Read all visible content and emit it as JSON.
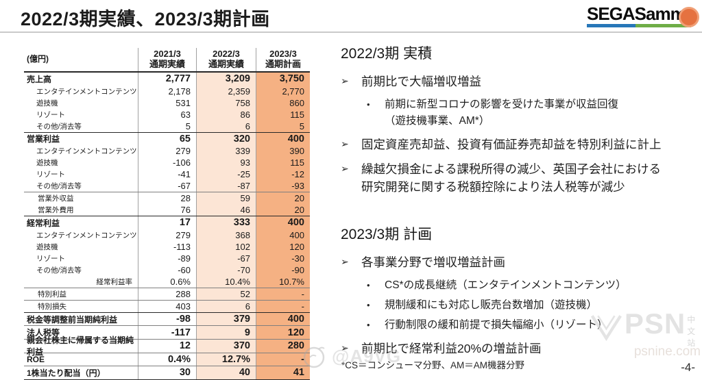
{
  "title": "2022/3期実績、2023/3期計画",
  "logo": {
    "text": "SEGASammy"
  },
  "table": {
    "unit_label": "(億円)",
    "columns": [
      {
        "line1": "2021/3",
        "line2": "通期実績"
      },
      {
        "line1": "2022/3",
        "line2": "通期実績"
      },
      {
        "line1": "2023/3",
        "line2": "通期計画"
      }
    ],
    "rows": [
      {
        "label": "売上高",
        "indent": 0,
        "bold": true,
        "border": "b1",
        "values": [
          "2,777",
          "3,209",
          "3,750"
        ]
      },
      {
        "label": "エンタテインメントコンテンツ",
        "indent": 1,
        "bold": false,
        "border": "",
        "values": [
          "2,178",
          "2,359",
          "2,770"
        ]
      },
      {
        "label": "遊技機",
        "indent": 1,
        "bold": false,
        "border": "",
        "values": [
          "531",
          "758",
          "860"
        ]
      },
      {
        "label": "リゾート",
        "indent": 1,
        "bold": false,
        "border": "",
        "values": [
          "63",
          "86",
          "115"
        ]
      },
      {
        "label": "その他/消去等",
        "indent": 1,
        "bold": false,
        "border": "",
        "values": [
          "5",
          "6",
          "5"
        ]
      },
      {
        "label": "営業利益",
        "indent": 0,
        "bold": true,
        "border": "b1",
        "values": [
          "65",
          "320",
          "400"
        ]
      },
      {
        "label": "エンタテインメントコンテンツ",
        "indent": 1,
        "bold": false,
        "border": "",
        "values": [
          "279",
          "339",
          "390"
        ]
      },
      {
        "label": "遊技機",
        "indent": 1,
        "bold": false,
        "border": "",
        "values": [
          "-106",
          "93",
          "115"
        ]
      },
      {
        "label": "リゾート",
        "indent": 1,
        "bold": false,
        "border": "",
        "values": [
          "-41",
          "-25",
          "-12"
        ]
      },
      {
        "label": "その他/消去等",
        "indent": 1,
        "bold": false,
        "border": "",
        "values": [
          "-67",
          "-87",
          "-93"
        ]
      },
      {
        "label": "営業外収益",
        "indent": 2,
        "bold": false,
        "border": "b2",
        "values": [
          "28",
          "59",
          "20"
        ]
      },
      {
        "label": "営業外費用",
        "indent": 2,
        "bold": false,
        "border": "",
        "values": [
          "76",
          "46",
          "20"
        ]
      },
      {
        "label": "経常利益",
        "indent": 0,
        "bold": true,
        "border": "b1",
        "values": [
          "17",
          "333",
          "400"
        ]
      },
      {
        "label": "エンタテインメントコンテンツ",
        "indent": 1,
        "bold": false,
        "border": "",
        "values": [
          "279",
          "368",
          "400"
        ]
      },
      {
        "label": "遊技機",
        "indent": 1,
        "bold": false,
        "border": "",
        "values": [
          "-113",
          "102",
          "120"
        ]
      },
      {
        "label": "リゾート",
        "indent": 1,
        "bold": false,
        "border": "",
        "values": [
          "-89",
          "-67",
          "-30"
        ]
      },
      {
        "label": "その他/消去等",
        "indent": 1,
        "bold": false,
        "border": "",
        "values": [
          "-60",
          "-70",
          "-90"
        ]
      },
      {
        "label": "経常利益率",
        "indent": 0,
        "labelAlign": "right",
        "bold": false,
        "border": "",
        "values": [
          "0.6%",
          "10.4%",
          "10.7%"
        ]
      },
      {
        "label": "特別利益",
        "indent": 2,
        "bold": false,
        "border": "b2",
        "values": [
          "288",
          "52",
          "-"
        ]
      },
      {
        "label": "特別損失",
        "indent": 2,
        "bold": false,
        "border": "b2",
        "values": [
          "403",
          "6",
          "-"
        ]
      },
      {
        "label": "税金等調整前当期純利益",
        "indent": 0,
        "bold": true,
        "border": "b1",
        "values": [
          "-98",
          "379",
          "400"
        ]
      },
      {
        "label": "法人税等",
        "indent": 0,
        "bold": true,
        "border": "b2",
        "values": [
          "-117",
          "9",
          "120"
        ]
      },
      {
        "label": "親会社株主に帰属する当期純利益",
        "indent": 0,
        "bold": true,
        "border": "b2",
        "values": [
          "12",
          "370",
          "280"
        ]
      },
      {
        "label": "ROE",
        "indent": 0,
        "bold": true,
        "border": "b2",
        "values": [
          "0.4%",
          "12.7%",
          "-"
        ]
      },
      {
        "label": "1株当たり配当（円）",
        "indent": 0,
        "bold": true,
        "border": "b2",
        "values": [
          "30",
          "40",
          "41"
        ]
      }
    ]
  },
  "right": {
    "bullet_arrow": "➢",
    "bullet_dot": "•",
    "sections": [
      {
        "heading": "2022/3期 実積",
        "items": [
          {
            "level": 1,
            "lines": [
              "前期比で大幅増収増益"
            ]
          },
          {
            "level": 2,
            "lines": [
              "前期に新型コロナの影響を受けた事業が収益回復",
              "（遊技機事業、AM*）"
            ]
          },
          {
            "level": 1,
            "lines": [
              "固定資産売却益、投資有価証券売却益を特別利益に計上"
            ]
          },
          {
            "level": 1,
            "lines": [
              "繰越欠損金による課税所得の減少、英国子会社における",
              "研究開発に関する税額控除により法人税等が減少"
            ]
          }
        ]
      },
      {
        "heading": "2023/3期 計画",
        "items": [
          {
            "level": 1,
            "lines": [
              "各事業分野で増収増益計画"
            ]
          },
          {
            "level": 2,
            "lines": [
              "CS*の成長継続（エンタテインメントコンテンツ）"
            ]
          },
          {
            "level": 2,
            "lines": [
              "規制緩和にも対応し販売台数増加（遊技機）"
            ]
          },
          {
            "level": 2,
            "lines": [
              "行動制限の緩和前提で損失幅縮小（リゾート）"
            ]
          },
          {
            "level": 1,
            "lines": [
              "前期比で経常利益20%の増益計画"
            ]
          }
        ]
      }
    ]
  },
  "footnote": "*CS＝コンシューマ分野、AM＝AM機器分野",
  "page_number": "-4-",
  "watermarks": {
    "weibo_handle": "@A9VG",
    "psn_name": "PSN",
    "psn_tag": "中文站",
    "psn_url": "psnine.com"
  },
  "colors": {
    "col_2022_fill": "#fce5d5",
    "col_2023_fill": "#f5b183",
    "logo_blue": "#2777b8",
    "logo_green": "#6fad47"
  }
}
